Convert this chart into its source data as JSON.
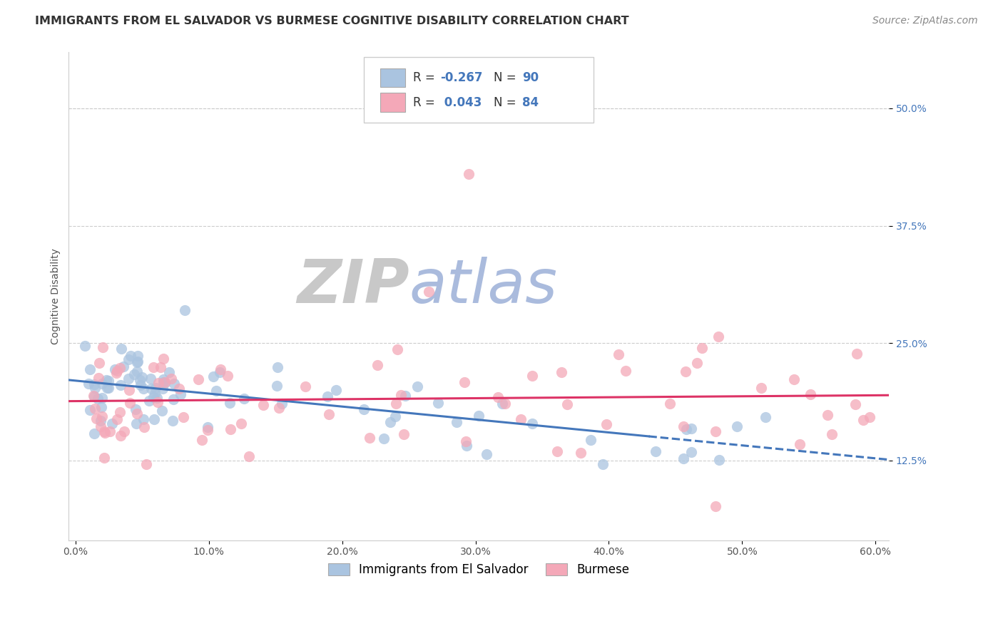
{
  "title": "IMMIGRANTS FROM EL SALVADOR VS BURMESE COGNITIVE DISABILITY CORRELATION CHART",
  "source": "Source: ZipAtlas.com",
  "xlabel_ticks": [
    "0.0%",
    "10.0%",
    "20.0%",
    "30.0%",
    "40.0%",
    "50.0%",
    "60.0%"
  ],
  "xlabel_vals": [
    0.0,
    0.1,
    0.2,
    0.3,
    0.4,
    0.5,
    0.6
  ],
  "ylabel": "Cognitive Disability",
  "ylabel_ticks": [
    "12.5%",
    "25.0%",
    "37.5%",
    "50.0%"
  ],
  "ylabel_vals": [
    0.125,
    0.25,
    0.375,
    0.5
  ],
  "ylim": [
    0.04,
    0.56
  ],
  "xlim": [
    -0.005,
    0.61
  ],
  "legend_labels": [
    "Immigrants from El Salvador",
    "Burmese"
  ],
  "R_blue": -0.267,
  "N_blue": 90,
  "R_pink": 0.043,
  "N_pink": 84,
  "blue_color": "#aac4e0",
  "pink_color": "#f4a8b8",
  "blue_line_color": "#4477bb",
  "pink_line_color": "#dd3366",
  "tick_color": "#4477bb",
  "label_color": "#555555",
  "grid_color": "#cccccc",
  "watermark_zip_color": "#c8c8c8",
  "watermark_atlas_color": "#aabbdd",
  "title_fontsize": 11.5,
  "axis_label_fontsize": 10,
  "tick_fontsize": 10,
  "legend_fontsize": 12,
  "source_fontsize": 10,
  "scatter_size": 120,
  "scatter_alpha": 0.75
}
